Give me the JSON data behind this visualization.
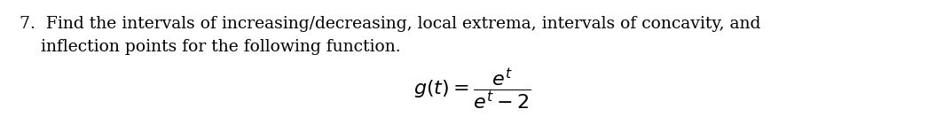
{
  "background_color": "#ffffff",
  "text_line1": "7.  Find the intervals of increasing/decreasing, local extrema, intervals of concavity, and",
  "text_line2": "    inflection points for the following function.",
  "text_color": "#000000",
  "font_size_text": 13.5,
  "font_size_formula": 16.0,
  "fig_width": 10.64,
  "fig_height": 1.58,
  "dpi": 100
}
